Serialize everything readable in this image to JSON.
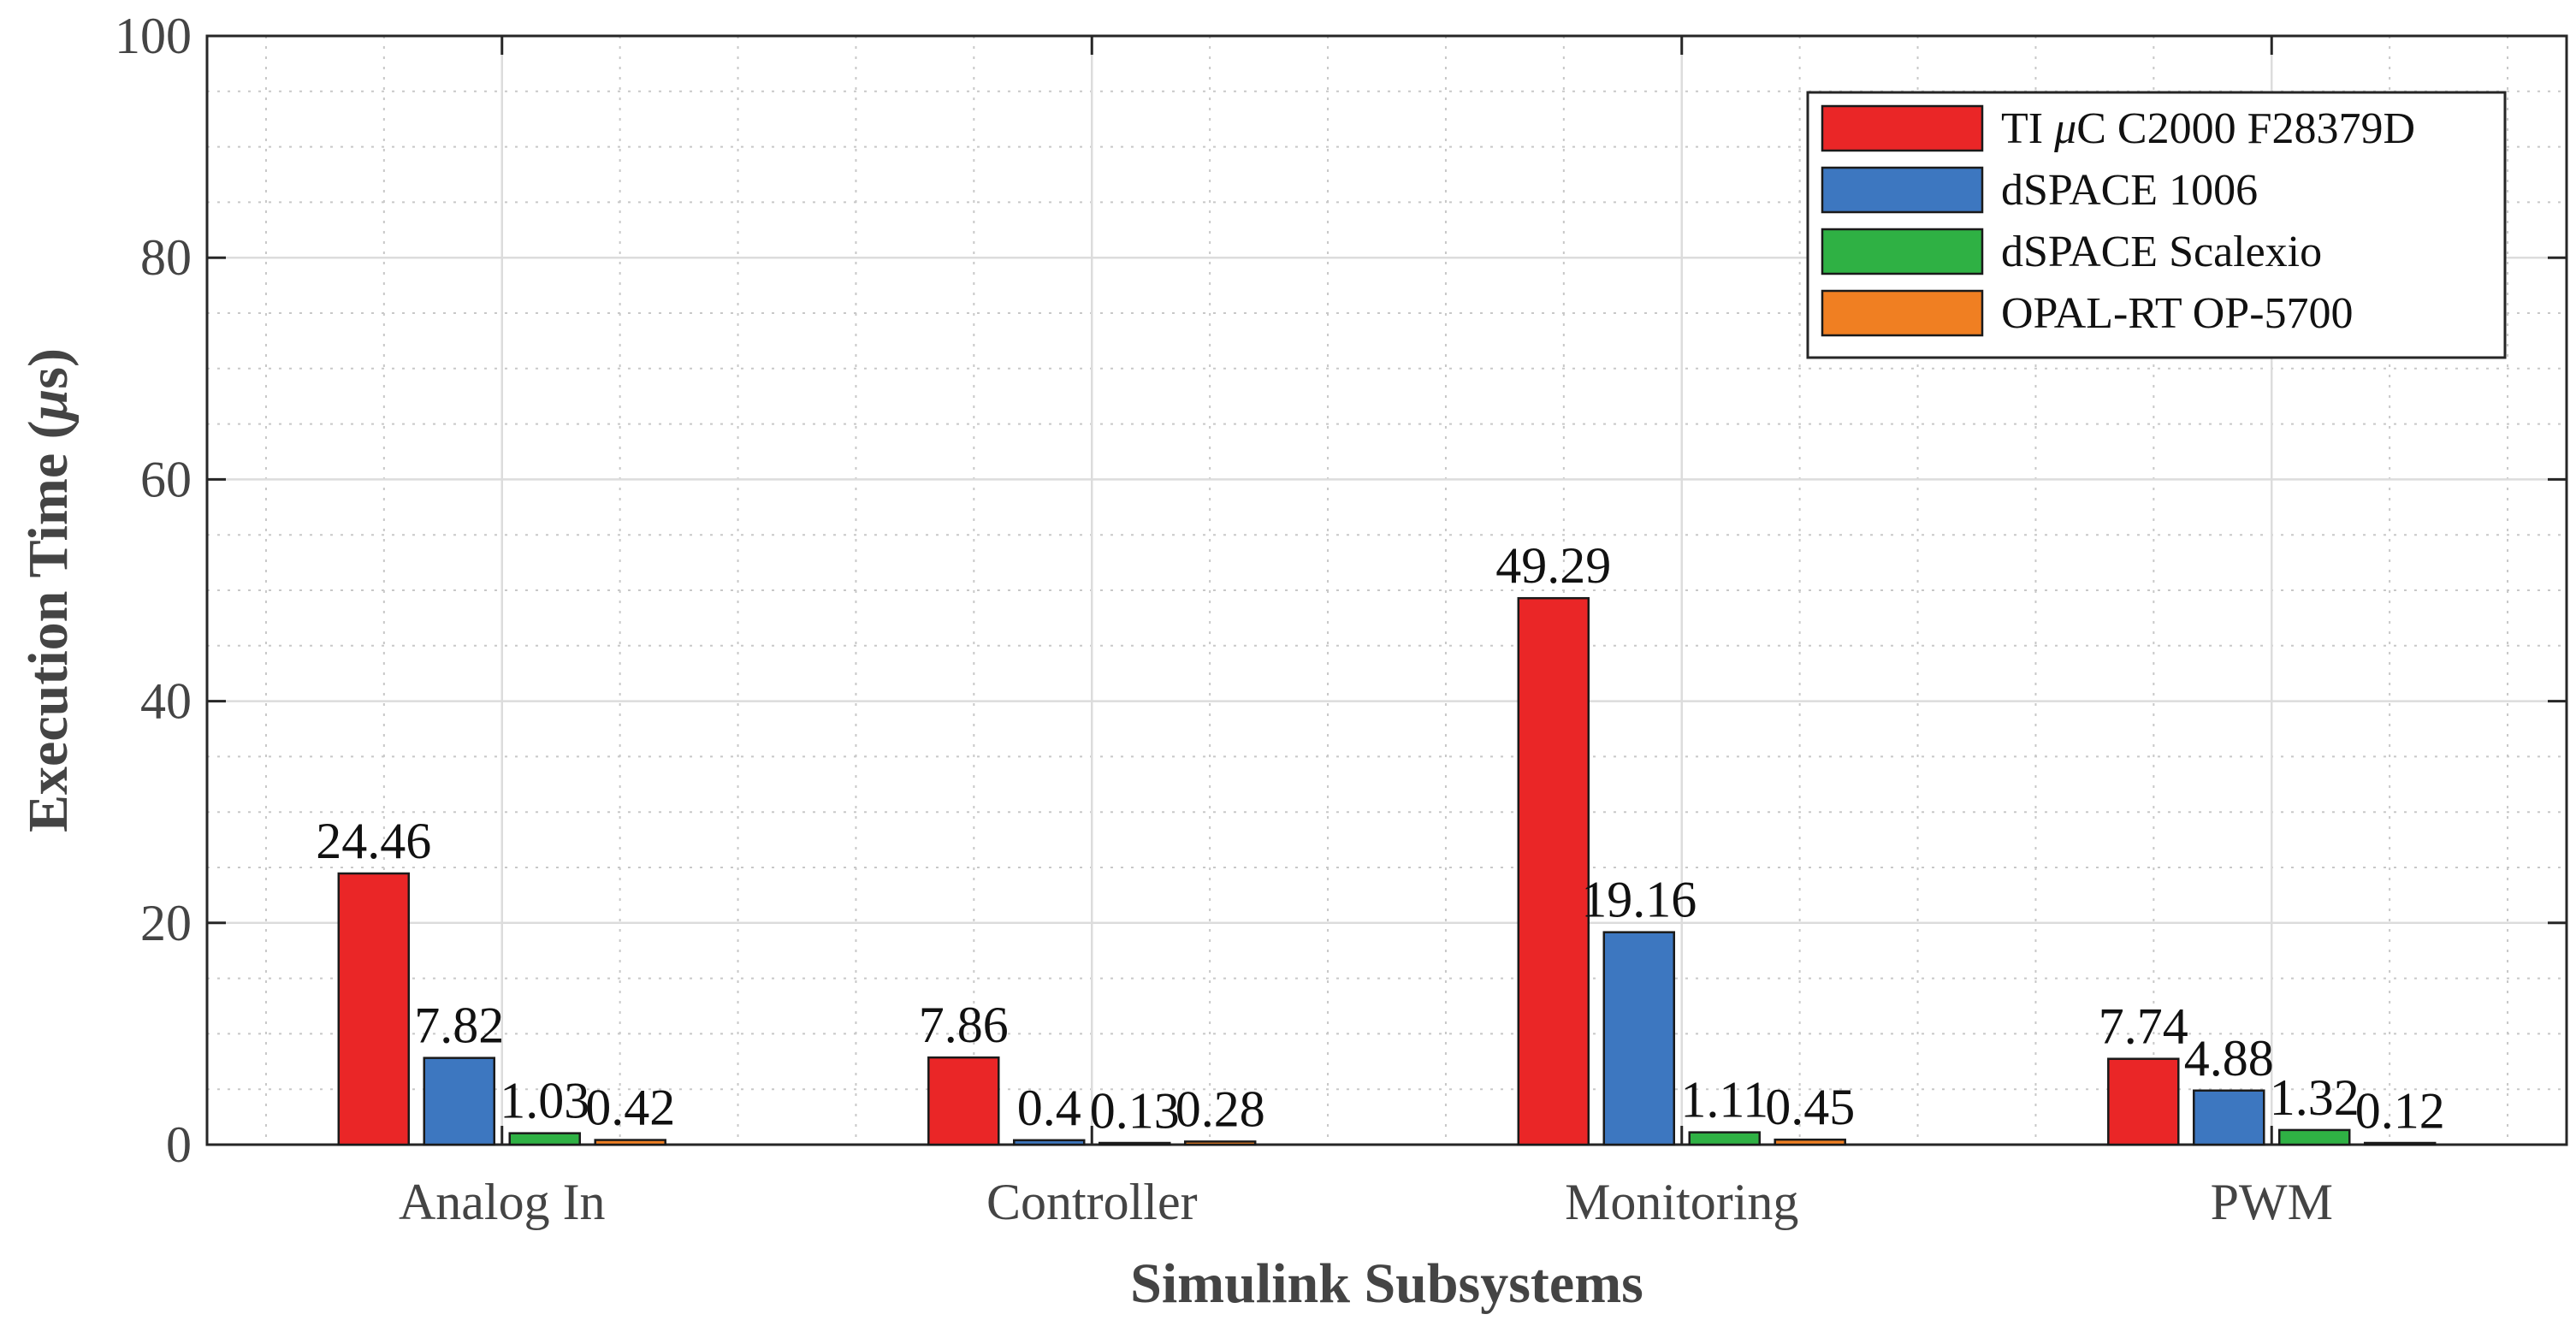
{
  "chart_data": {
    "type": "bar",
    "xlabel": "Simulink Subsystems",
    "ylabel_parts": [
      "Execution Time (",
      "μ",
      "s)"
    ],
    "ylim": [
      0,
      100
    ],
    "yticks": [
      0,
      20,
      40,
      60,
      80,
      100
    ],
    "grid": true,
    "minor_grid": true,
    "legend_position": "top-right",
    "categories": [
      "Analog In",
      "Controller",
      "Monitoring",
      "PWM"
    ],
    "series": [
      {
        "name": "TI μC C2000 F28379D",
        "name_parts": [
          "TI ",
          "μ",
          "C C2000 F28379D"
        ],
        "color": "#EA2627",
        "values": [
          24.46,
          7.86,
          49.29,
          7.74
        ],
        "labels": [
          "24.46",
          "7.86",
          "49.29",
          "7.74"
        ]
      },
      {
        "name": "dSPACE 1006",
        "color": "#3D77C0",
        "values": [
          7.82,
          0.4,
          19.16,
          4.88
        ],
        "labels": [
          "7.82",
          "0.4",
          "19.16",
          "4.88"
        ]
      },
      {
        "name": "dSPACE Scalexio",
        "color": "#2FB144",
        "values": [
          1.03,
          0.13,
          1.11,
          1.32
        ],
        "labels": [
          "1.03",
          "0.13",
          "1.11",
          "1.32"
        ]
      },
      {
        "name": "OPAL-RT OP-5700",
        "color": "#F07F22",
        "values": [
          0.42,
          0.28,
          0.45,
          0.12
        ],
        "labels": [
          "0.42",
          "0.28",
          "0.45",
          "0.12"
        ]
      }
    ]
  }
}
